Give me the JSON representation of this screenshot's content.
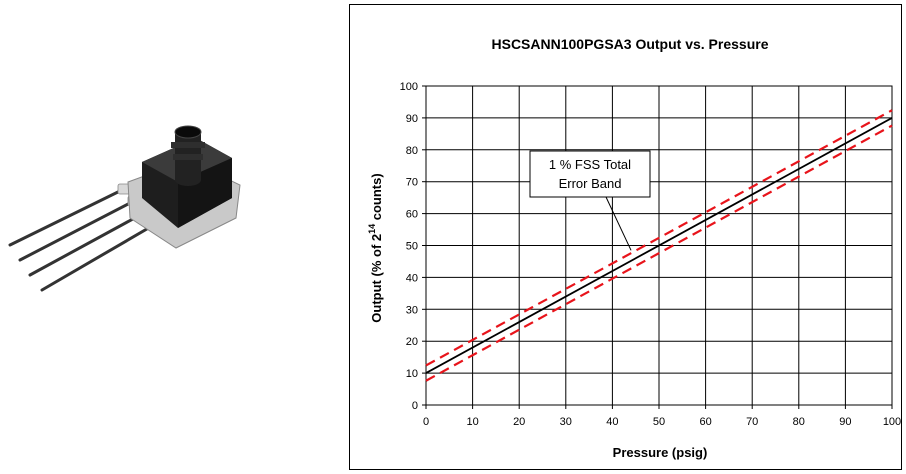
{
  "chart_data": {
    "type": "line",
    "title": "HSCSANN100PGSA3 Output vs. Pressure",
    "xlabel": "Pressure (psig)",
    "ylabel_main": "Output (% of  2",
    "ylabel_sup": "14",
    "ylabel_end": " counts)",
    "xlim": [
      0,
      100
    ],
    "ylim": [
      0,
      100
    ],
    "xticks": [
      "0",
      "10",
      "20",
      "30",
      "40",
      "50",
      "60",
      "70",
      "80",
      "90",
      "100"
    ],
    "yticks": [
      "0",
      "10",
      "20",
      "30",
      "40",
      "50",
      "60",
      "70",
      "80",
      "90",
      "100"
    ],
    "grid": true,
    "series": [
      {
        "style": "solid",
        "color": "#000000",
        "x": [
          0,
          100
        ],
        "y": [
          10,
          90
        ]
      },
      {
        "style": "dashed",
        "color": "#e8141b",
        "x": [
          0,
          100
        ],
        "y": [
          12.4,
          92.4
        ]
      },
      {
        "style": "dashed",
        "color": "#e8141b",
        "x": [
          0,
          100
        ],
        "y": [
          7.6,
          87.6
        ]
      }
    ],
    "annotation": {
      "line1": "1 % FSS Total",
      "line2": "Error Band",
      "points_to": [
        44,
        48.5
      ]
    }
  },
  "photo": {
    "body_color": "#2a2a2a",
    "pin_color": "#3a3a3a",
    "plate_color": "#c8c8c8"
  }
}
